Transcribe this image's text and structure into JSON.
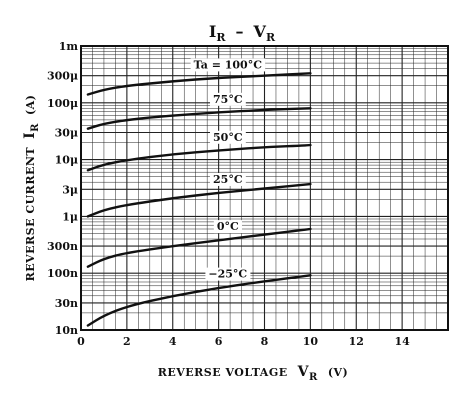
{
  "chart_data": {
    "type": "line",
    "title": {
      "main": "I",
      "main_sub": "R",
      "dash": "–",
      "second": "V",
      "second_sub": "R"
    },
    "ylabel": {
      "text": "REVERSE CURRENT",
      "sym": "I",
      "sub": "R",
      "unit": "(A)"
    },
    "xlabel": {
      "text": "REVERSE VOLTAGE",
      "sym": "V",
      "sub": "R",
      "unit": "(V)"
    },
    "x_ticks": [
      "0",
      "2",
      "4",
      "6",
      "8",
      "10",
      "12",
      "14"
    ],
    "y_ticks": [
      {
        "label": "1m",
        "value": 0.001
      },
      {
        "label": "300μ",
        "value": 0.0003
      },
      {
        "label": "100μ",
        "value": 0.0001
      },
      {
        "label": "30μ",
        "value": 3e-05
      },
      {
        "label": "10μ",
        "value": 1e-05
      },
      {
        "label": "3μ",
        "value": 3e-06
      },
      {
        "label": "1μ",
        "value": 1e-06
      },
      {
        "label": "300n",
        "value": 3e-07
      },
      {
        "label": "100n",
        "value": 1e-07
      },
      {
        "label": "30n",
        "value": 3e-08
      },
      {
        "label": "10n",
        "value": 1e-08
      }
    ],
    "xlim": [
      0,
      16
    ],
    "ylim": [
      1e-08,
      0.001
    ],
    "y_scale": "log",
    "grid": true,
    "series": [
      {
        "name": "Ta = 100°C",
        "x": [
          0.3,
          1,
          2,
          4,
          6,
          8,
          10
        ],
        "y": [
          0.00014,
          0.00017,
          0.0002,
          0.00024,
          0.000275,
          0.0003,
          0.00033
        ]
      },
      {
        "name": "75°C",
        "x": [
          0.3,
          1,
          2,
          4,
          6,
          8,
          10
        ],
        "y": [
          3.5e-05,
          4.3e-05,
          5e-05,
          6e-05,
          6.8e-05,
          7.5e-05,
          8e-05
        ]
      },
      {
        "name": "50°C",
        "x": [
          0.3,
          1,
          2,
          4,
          6,
          8,
          10
        ],
        "y": [
          6.5e-06,
          8.2e-06,
          9.8e-06,
          1.25e-05,
          1.45e-05,
          1.65e-05,
          1.8e-05
        ]
      },
      {
        "name": "25°C",
        "x": [
          0.3,
          1,
          2,
          4,
          6,
          8,
          10
        ],
        "y": [
          1e-06,
          1.3e-06,
          1.6e-06,
          2.1e-06,
          2.6e-06,
          3.1e-06,
          3.7e-06
        ]
      },
      {
        "name": "0°C",
        "x": [
          0.3,
          1,
          2,
          4,
          6,
          8,
          10
        ],
        "y": [
          1.3e-07,
          1.8e-07,
          2.3e-07,
          3e-07,
          3.8e-07,
          4.8e-07,
          6e-07
        ]
      },
      {
        "name": "−25°C",
        "x": [
          0.3,
          1,
          2,
          4,
          6,
          8,
          10
        ],
        "y": [
          1.2e-08,
          1.8e-08,
          2.6e-08,
          4e-08,
          5.5e-08,
          7.2e-08,
          9.2e-08
        ]
      }
    ]
  }
}
